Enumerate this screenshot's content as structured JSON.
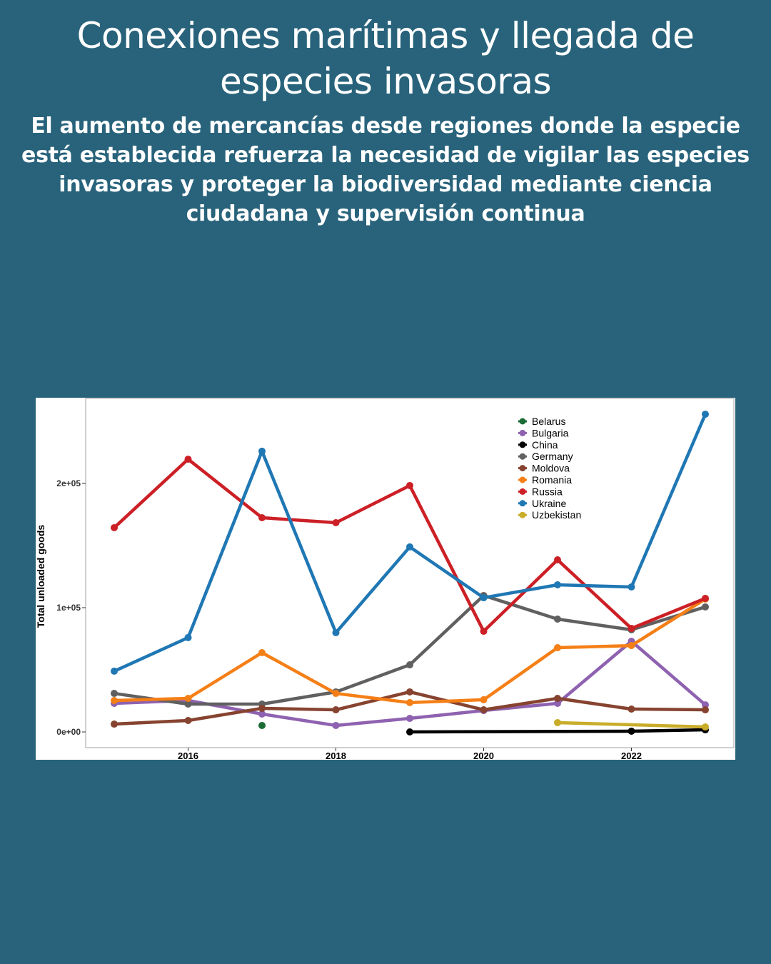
{
  "title": "Conexiones marítimas y llegada de especies invasoras",
  "subtitle": "El aumento de mercancías desde regiones donde la especie está establecida refuerza la necesidad de vigilar las especies invasoras y proteger la biodiversidad mediante ciencia ciudadana y supervisión continua",
  "chart_data": {
    "type": "line",
    "title": "",
    "xlabel": "",
    "ylabel": "Total unloaded goods",
    "xlim": [
      2014.6,
      2023.4
    ],
    "ylim": [
      -12500,
      262000
    ],
    "x_ticks": [
      2016,
      2018,
      2020,
      2022
    ],
    "y_ticks": [
      0,
      100000,
      200000
    ],
    "y_tick_labels": [
      "0e+00",
      "1e+05",
      "2e+05"
    ],
    "grid": false,
    "legend_position": "top-right",
    "series": [
      {
        "name": "Belarus",
        "color": "#1b6b35",
        "points": [
          [
            2017,
            5200
          ]
        ]
      },
      {
        "name": "Bulgaria",
        "color": "#8e62b0",
        "points": [
          [
            2015,
            23000
          ],
          [
            2016,
            25300
          ],
          [
            2017,
            14400
          ],
          [
            2018,
            5200
          ],
          [
            2019,
            10900
          ],
          [
            2020,
            17200
          ],
          [
            2021,
            23000
          ],
          [
            2022,
            73000
          ],
          [
            2023,
            21800
          ]
        ]
      },
      {
        "name": "China",
        "color": "#000000",
        "points": [
          [
            2019,
            0
          ],
          [
            2022,
            600
          ],
          [
            2023,
            1700
          ]
        ]
      },
      {
        "name": "Germany",
        "color": "#606060",
        "points": [
          [
            2015,
            31000
          ],
          [
            2016,
            22400
          ],
          [
            2017,
            22400
          ],
          [
            2018,
            32200
          ],
          [
            2019,
            54000
          ],
          [
            2020,
            109800
          ],
          [
            2021,
            90800
          ],
          [
            2022,
            82200
          ],
          [
            2023,
            100600
          ]
        ]
      },
      {
        "name": "Moldova",
        "color": "#86432f",
        "points": [
          [
            2015,
            6300
          ],
          [
            2016,
            9200
          ],
          [
            2017,
            19000
          ],
          [
            2018,
            17800
          ],
          [
            2019,
            32200
          ],
          [
            2020,
            17800
          ],
          [
            2021,
            27000
          ],
          [
            2022,
            18400
          ],
          [
            2023,
            17800
          ]
        ]
      },
      {
        "name": "Romania",
        "color": "#f57f17",
        "points": [
          [
            2015,
            25300
          ],
          [
            2016,
            27000
          ],
          [
            2017,
            63800
          ],
          [
            2018,
            31000
          ],
          [
            2019,
            23600
          ],
          [
            2020,
            25900
          ],
          [
            2021,
            67800
          ],
          [
            2022,
            69500
          ],
          [
            2023,
            107000
          ]
        ]
      },
      {
        "name": "Russia",
        "color": "#cc2026",
        "points": [
          [
            2015,
            164400
          ],
          [
            2016,
            219500
          ],
          [
            2017,
            172400
          ],
          [
            2018,
            168400
          ],
          [
            2019,
            198300
          ],
          [
            2020,
            81000
          ],
          [
            2021,
            138500
          ],
          [
            2022,
            83300
          ],
          [
            2023,
            107500
          ]
        ]
      },
      {
        "name": "Ukraine",
        "color": "#1f77b4",
        "points": [
          [
            2015,
            48900
          ],
          [
            2016,
            75900
          ],
          [
            2017,
            225900
          ],
          [
            2018,
            79900
          ],
          [
            2019,
            148900
          ],
          [
            2020,
            108000
          ],
          [
            2021,
            118400
          ],
          [
            2022,
            116700
          ],
          [
            2023,
            255700
          ]
        ]
      },
      {
        "name": "Uzbekistan",
        "color": "#c9ad2a",
        "points": [
          [
            2021,
            7500
          ],
          [
            2023,
            4000
          ]
        ]
      }
    ]
  }
}
